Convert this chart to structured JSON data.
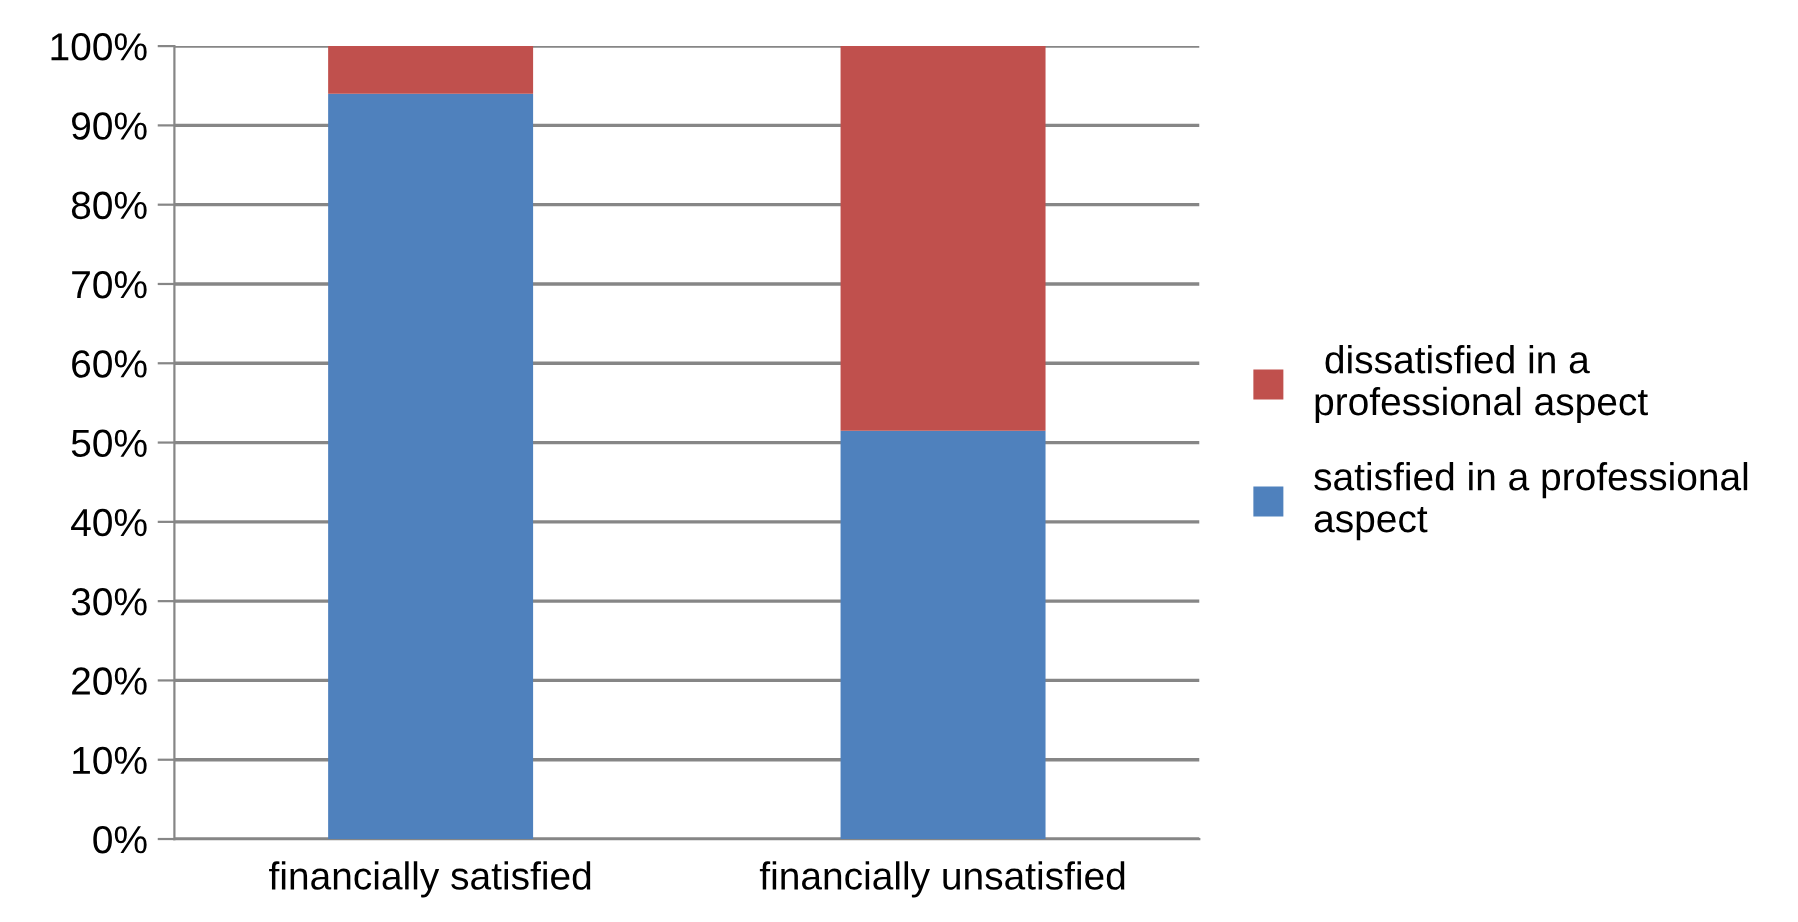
{
  "chart_data": {
    "type": "bar",
    "stacked": true,
    "categories": [
      "financially satisfied",
      "financially unsatisfied"
    ],
    "series": [
      {
        "name": "satisfied in a professional\naspect",
        "color": "#4f81bd",
        "values": [
          94,
          51.5
        ]
      },
      {
        "name": " dissatisfied in a\nprofessional aspect",
        "color": "#c0504d",
        "values": [
          6,
          48.5
        ]
      }
    ],
    "ylim": [
      0,
      100
    ],
    "yticks": [
      {
        "value": 0,
        "label": "0%"
      },
      {
        "value": 10,
        "label": "10%"
      },
      {
        "value": 20,
        "label": "20%"
      },
      {
        "value": 30,
        "label": "30%"
      },
      {
        "value": 40,
        "label": "40%"
      },
      {
        "value": 50,
        "label": "50%"
      },
      {
        "value": 60,
        "label": "60%"
      },
      {
        "value": 70,
        "label": "70%"
      },
      {
        "value": 80,
        "label": "80%"
      },
      {
        "value": 90,
        "label": "90%"
      },
      {
        "value": 100,
        "label": "100%"
      }
    ],
    "grid": "y",
    "legend": "right"
  }
}
